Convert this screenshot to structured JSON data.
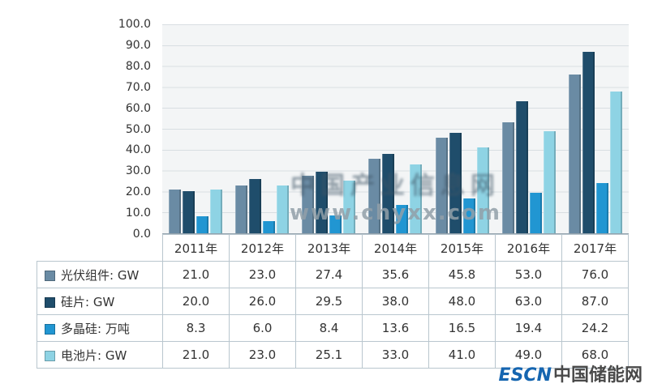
{
  "chart_data": {
    "type": "bar",
    "title": "",
    "categories": [
      "2011年",
      "2012年",
      "2013年",
      "2014年",
      "2015年",
      "2016年",
      "2017年"
    ],
    "series": [
      {
        "label": "光伏组件: GW",
        "color": "#6a8ba4",
        "values": [
          21.0,
          23.0,
          27.4,
          35.6,
          45.8,
          53.0,
          76.0
        ]
      },
      {
        "label": "硅片: GW",
        "color": "#1f4d6b",
        "values": [
          20.0,
          26.0,
          29.5,
          38.0,
          48.0,
          63.0,
          87.0
        ]
      },
      {
        "label": "多晶硅: 万吨",
        "color": "#2196d2",
        "values": [
          8.3,
          6.0,
          8.4,
          13.6,
          16.5,
          19.4,
          24.2
        ]
      },
      {
        "label": "电池片: GW",
        "color": "#8ed3e4",
        "values": [
          21.0,
          23.0,
          25.1,
          33.0,
          41.0,
          49.0,
          68.0
        ]
      }
    ],
    "ylim": [
      0,
      100
    ],
    "ytick_labels": [
      "0.0",
      "10.0",
      "20.0",
      "30.0",
      "40.0",
      "50.0",
      "60.0",
      "70.0",
      "80.0",
      "90.0",
      "100.0"
    ],
    "grid": true,
    "value_format_decimals": 1,
    "legend_position": "table-rows-left",
    "xlabel": "",
    "ylabel": ""
  },
  "watermark": {
    "line1": "中国产业信息网",
    "line2": "www.chyxx.com"
  },
  "footer": {
    "brand_en": "ESCN",
    "brand_cn": "中国储能网"
  }
}
